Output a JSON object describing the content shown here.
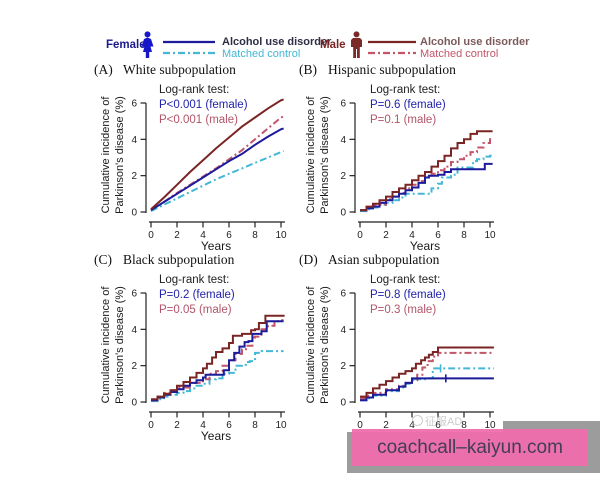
{
  "colors": {
    "female_aud": "#1b1b9b",
    "female_control": "#44b7d6",
    "male_aud": "#7a2524",
    "male_control": "#c25568",
    "female_label": "#1a1a8c",
    "male_label": "#7a2524",
    "female_icon": "#1717c9",
    "male_icon": "#7a2a28",
    "female_aud_text": "#2e2e44",
    "male_aud_text": "#7d5a5a",
    "logrank_female": "#2222aa",
    "logrank_male": "#b25568",
    "axis": "#222222",
    "banner_pink": "#f06dac",
    "banner_gray": "#9c9c9c"
  },
  "legend": {
    "female": {
      "label": "Female",
      "items": [
        {
          "label": "Alcohol use disorder",
          "line": "solid",
          "series": "female_aud"
        },
        {
          "label": "Matched control",
          "line": "dash-dot",
          "series": "female_control"
        }
      ]
    },
    "male": {
      "label": "Male",
      "items": [
        {
          "label": "Alcohol use disorder",
          "line": "solid",
          "series": "male_aud"
        },
        {
          "label": "Matched control",
          "line": "dash-dot",
          "series": "male_control"
        }
      ]
    }
  },
  "ylabel": {
    "line1": "Cumulative incidence of",
    "line2": "Parkinson's disease (%)"
  },
  "chart_data": [
    {
      "id": "A",
      "type": "line",
      "panel_label": "(A)",
      "title": "White subpopulation",
      "logrank_title": "Log-rank test:",
      "logrank_female": "P<0.001 (female)",
      "logrank_male": "P<0.001 (male)",
      "xlabel": "Years",
      "ylabel": "Cumulative incidence of Parkinson's disease (%)",
      "xlim": [
        0,
        10
      ],
      "ylim": [
        0,
        6
      ],
      "xticks": [
        0,
        2,
        4,
        6,
        8,
        10
      ],
      "yticks": [
        0,
        2,
        4,
        6
      ],
      "series": [
        {
          "name": "female_control",
          "color_key": "female_control",
          "dash": "dash-dot",
          "step": false,
          "x": [
            0,
            1,
            2,
            3,
            4,
            5,
            6,
            7,
            8,
            9,
            10,
            10.2
          ],
          "y": [
            0.05,
            0.4,
            0.75,
            1.1,
            1.45,
            1.8,
            2.1,
            2.4,
            2.7,
            3.0,
            3.3,
            3.35
          ]
        },
        {
          "name": "male_control",
          "color_key": "male_control",
          "dash": "dash-dot",
          "step": false,
          "x": [
            0,
            1,
            2,
            3,
            4,
            5,
            6,
            7,
            8,
            9,
            10,
            10.2
          ],
          "y": [
            0.1,
            0.55,
            1.05,
            1.5,
            1.95,
            2.4,
            2.9,
            3.4,
            4.0,
            4.6,
            5.2,
            5.25
          ]
        },
        {
          "name": "female_aud",
          "color_key": "female_aud",
          "dash": "solid",
          "step": false,
          "x": [
            0,
            1,
            2,
            3,
            4,
            5,
            6,
            7,
            8,
            9,
            10,
            10.2
          ],
          "y": [
            0.1,
            0.55,
            1.0,
            1.45,
            1.9,
            2.35,
            2.8,
            3.2,
            3.7,
            4.15,
            4.55,
            4.6
          ]
        },
        {
          "name": "male_aud",
          "color_key": "male_aud",
          "dash": "solid",
          "step": false,
          "x": [
            0,
            1,
            2,
            3,
            4,
            5,
            6,
            7,
            8,
            9,
            10,
            10.2
          ],
          "y": [
            0.15,
            0.8,
            1.5,
            2.2,
            2.85,
            3.5,
            4.1,
            4.7,
            5.2,
            5.7,
            6.15,
            6.2
          ]
        }
      ]
    },
    {
      "id": "B",
      "type": "line",
      "panel_label": "(B)",
      "title": "Hispanic subpopulation",
      "logrank_title": "Log-rank test:",
      "logrank_female": "P=0.6 (female)",
      "logrank_male": "P=0.1 (male)",
      "xlabel": "Years",
      "ylabel": "Cumulative incidence of Parkinson's disease (%)",
      "xlim": [
        0,
        10
      ],
      "ylim": [
        0,
        6
      ],
      "xticks": [
        0,
        2,
        4,
        6,
        8,
        10
      ],
      "yticks": [
        0,
        2,
        4,
        6
      ],
      "series": [
        {
          "name": "female_control",
          "color_key": "female_control",
          "dash": "dash-dot",
          "step": true,
          "x": [
            0,
            0.5,
            1,
            1.5,
            2,
            2.5,
            3,
            3.5,
            5,
            5.5,
            6,
            6.3,
            7,
            7.5,
            8.7,
            9,
            9.5,
            10,
            10.2
          ],
          "y": [
            0.05,
            0.15,
            0.25,
            0.4,
            0.5,
            0.65,
            0.8,
            1.0,
            1.0,
            1.3,
            1.55,
            1.9,
            2.05,
            2.45,
            2.8,
            2.9,
            3.05,
            3.1,
            3.1
          ]
        },
        {
          "name": "male_control",
          "color_key": "male_control",
          "dash": "dash-dot",
          "step": true,
          "x": [
            0,
            0.5,
            1,
            2,
            2.5,
            3,
            3.5,
            4,
            4.5,
            5,
            5.5,
            6,
            6.5,
            7,
            7.5,
            8,
            8.5,
            9,
            9.5,
            10,
            10.2
          ],
          "y": [
            0.1,
            0.25,
            0.4,
            0.7,
            0.85,
            1.05,
            1.3,
            1.5,
            1.7,
            1.9,
            2.1,
            2.3,
            2.5,
            2.75,
            2.9,
            3.1,
            3.3,
            3.55,
            3.8,
            4.0,
            4.0
          ]
        },
        {
          "name": "female_aud",
          "color_key": "female_aud",
          "dash": "solid",
          "step": true,
          "x": [
            0,
            0.5,
            1,
            1.5,
            2,
            2.5,
            3,
            3.5,
            4,
            4.5,
            5,
            5.3,
            6,
            6.5,
            7,
            9.5,
            9.6,
            10.2
          ],
          "y": [
            0.1,
            0.2,
            0.3,
            0.5,
            0.65,
            0.85,
            1.0,
            1.2,
            1.35,
            1.6,
            1.9,
            2.0,
            2.05,
            2.2,
            2.35,
            2.35,
            2.65,
            2.65
          ]
        },
        {
          "name": "male_aud",
          "color_key": "male_aud",
          "dash": "solid",
          "step": true,
          "x": [
            0,
            0.5,
            1,
            1.5,
            2,
            2.5,
            3,
            3.5,
            4,
            4.5,
            5,
            5.5,
            6,
            6.5,
            7,
            7.5,
            8,
            8.5,
            9,
            10.2
          ],
          "y": [
            0.1,
            0.3,
            0.45,
            0.65,
            0.85,
            1.1,
            1.3,
            1.5,
            1.75,
            2.0,
            2.2,
            2.5,
            2.8,
            3.1,
            3.5,
            3.8,
            4.0,
            4.3,
            4.45,
            4.45
          ]
        }
      ]
    },
    {
      "id": "C",
      "type": "line",
      "panel_label": "(C)",
      "title": "Black subpopulation",
      "logrank_title": "Log-rank test:",
      "logrank_female": "P=0.2 (female)",
      "logrank_male": "P=0.05 (male)",
      "xlabel": "Years",
      "ylabel": "Cumulative incidence of Parkinson's disease (%)",
      "xlim": [
        0,
        10
      ],
      "ylim": [
        0,
        6
      ],
      "xticks": [
        0,
        2,
        4,
        6,
        8,
        10
      ],
      "yticks": [
        0,
        2,
        4,
        6
      ],
      "series": [
        {
          "name": "female_control",
          "color_key": "female_control",
          "dash": "dash-dot",
          "step": true,
          "x": [
            0,
            0.5,
            1,
            1.5,
            2,
            2.5,
            3,
            3.5,
            4,
            4.5,
            5,
            5.5,
            6,
            6.5,
            7,
            7.3,
            7.6,
            8,
            8.5,
            10.2
          ],
          "y": [
            0.05,
            0.15,
            0.3,
            0.4,
            0.5,
            0.6,
            0.75,
            0.9,
            1.0,
            1.25,
            1.3,
            1.55,
            1.6,
            2.0,
            2.05,
            2.2,
            2.25,
            2.7,
            2.8,
            2.8
          ]
        },
        {
          "name": "male_control",
          "color_key": "male_control",
          "dash": "dash-dot",
          "step": true,
          "x": [
            0,
            0.5,
            1,
            1.5,
            2,
            3,
            4,
            4.5,
            5,
            5.5,
            6,
            6.5,
            7,
            7.3,
            7.8,
            8,
            8.5,
            9,
            9.5,
            10,
            10.2
          ],
          "y": [
            0.1,
            0.3,
            0.5,
            0.65,
            0.8,
            1.05,
            1.25,
            1.55,
            1.7,
            2.0,
            2.3,
            2.65,
            2.9,
            3.1,
            3.55,
            3.6,
            4.0,
            4.2,
            4.45,
            4.5,
            4.5
          ]
        },
        {
          "name": "female_aud",
          "color_key": "female_aud",
          "dash": "solid",
          "step": true,
          "x": [
            0,
            0.5,
            1,
            1.5,
            2,
            2.5,
            3,
            3.5,
            4,
            4.2,
            5.3,
            5.6,
            6,
            6.4,
            6.8,
            7.2,
            7.5,
            7.8,
            8.5,
            8.9,
            10.2
          ],
          "y": [
            0.1,
            0.25,
            0.4,
            0.55,
            0.7,
            0.9,
            1.05,
            1.2,
            1.35,
            1.5,
            1.5,
            1.75,
            2.3,
            2.7,
            3.05,
            3.3,
            3.35,
            3.75,
            3.9,
            4.45,
            4.45
          ]
        },
        {
          "name": "male_aud",
          "color_key": "male_aud",
          "dash": "solid",
          "step": true,
          "x": [
            0,
            0.5,
            1,
            1.5,
            2,
            2.5,
            3,
            3.5,
            4,
            4.3,
            4.7,
            5,
            5.5,
            6,
            6.3,
            7,
            7.7,
            8,
            8.3,
            8.8,
            10.2
          ],
          "y": [
            0.15,
            0.3,
            0.45,
            0.65,
            0.9,
            1.1,
            1.35,
            1.6,
            1.85,
            2.1,
            2.45,
            2.75,
            2.95,
            3.25,
            3.65,
            3.75,
            3.95,
            4.0,
            4.35,
            4.75,
            4.8
          ]
        }
      ]
    },
    {
      "id": "D",
      "type": "line",
      "panel_label": "(D)",
      "title": "Asian subpopulation",
      "logrank_title": "Log-rank test:",
      "logrank_female": "P=0.8 (female)",
      "logrank_male": "P=0.3 (male)",
      "xlabel": "Years",
      "ylabel": "Cumulative incidence of Parkinson's disease (%)",
      "xlim": [
        0,
        10
      ],
      "ylim": [
        0,
        6
      ],
      "xticks": [
        0,
        2,
        4,
        6,
        8,
        10
      ],
      "yticks": [
        0,
        2,
        4,
        6
      ],
      "series": [
        {
          "name": "female_control",
          "color_key": "female_control",
          "dash": "dash-dot",
          "step": true,
          "x": [
            0,
            0.5,
            1,
            2,
            3,
            3.5,
            4,
            5.3,
            5.6,
            10.3
          ],
          "y": [
            0.1,
            0.2,
            0.35,
            0.6,
            0.8,
            1.0,
            1.25,
            1.3,
            1.85,
            1.85
          ],
          "censor": [
            {
              "x": 6.2,
              "y": 1.85
            }
          ]
        },
        {
          "name": "male_control",
          "color_key": "male_control",
          "dash": "dash-dot",
          "step": true,
          "x": [
            0,
            0.5,
            1,
            2,
            3,
            3.5,
            4,
            4.4,
            4.8,
            5.2,
            5.6,
            6,
            10.3
          ],
          "y": [
            0.2,
            0.35,
            0.5,
            0.7,
            0.9,
            1.05,
            1.2,
            1.5,
            1.9,
            2.25,
            2.5,
            2.7,
            2.7
          ]
        },
        {
          "name": "female_aud",
          "color_key": "female_aud",
          "dash": "solid",
          "step": true,
          "x": [
            0,
            0.5,
            1,
            2,
            3,
            3.5,
            4,
            10.3
          ],
          "y": [
            0.1,
            0.25,
            0.4,
            0.65,
            0.85,
            1.05,
            1.3,
            1.3
          ],
          "censor": [
            {
              "x": 6.6,
              "y": 1.3
            }
          ]
        },
        {
          "name": "male_aud",
          "color_key": "male_aud",
          "dash": "solid",
          "step": true,
          "x": [
            0,
            0.5,
            1,
            1.5,
            2,
            2.5,
            3,
            3.5,
            4,
            4.3,
            4.7,
            5,
            5.3,
            5.6,
            6,
            10.3
          ],
          "y": [
            0.3,
            0.5,
            0.75,
            0.95,
            1.15,
            1.35,
            1.55,
            1.7,
            1.85,
            2.1,
            2.3,
            2.45,
            2.6,
            2.75,
            3.0,
            3.0
          ]
        }
      ]
    }
  ],
  "watermark": {
    "text": "征服AD"
  },
  "banner": {
    "text": "coachcall–kaiyun.com"
  }
}
